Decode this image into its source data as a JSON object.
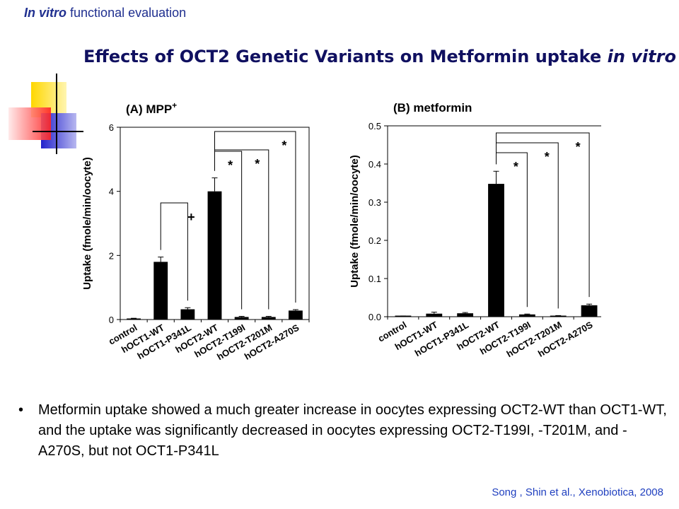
{
  "header": {
    "label_italic": "In vitro",
    "label_rest": "functional evaluation"
  },
  "title": {
    "main": "Effects of OCT2 Genetic Variants on Metformin uptake ",
    "italic": "in vitro"
  },
  "colors": {
    "decoration": [
      "#ffd700",
      "#3333cc",
      "#ff3333"
    ],
    "bar": "#000000",
    "accent": "#1f2f8f"
  },
  "chart_data": [
    {
      "type": "bar",
      "title": "(A) MPP",
      "title_superscript": "+",
      "ylabel": "Uptake (fmole/min/oocyte)",
      "xlabel": "",
      "ylim": [
        0,
        6
      ],
      "yticks": [
        "0",
        "2",
        "4",
        "6"
      ],
      "categories": [
        "control",
        "hOCT1-WT",
        "hOCT1-P341L",
        "hOCT2-WT",
        "hOCT2-T199I",
        "hOCT2-T201M",
        "hOCT2-A270S"
      ],
      "values": [
        0.03,
        1.8,
        0.32,
        4.0,
        0.08,
        0.08,
        0.28
      ],
      "errors": [
        0.01,
        0.15,
        0.05,
        0.42,
        0.02,
        0.02,
        0.03
      ],
      "annotations": [
        {
          "from": 1,
          "to": 2,
          "symbol": "+"
        },
        {
          "from": 3,
          "to": 4,
          "symbol": "*"
        },
        {
          "from": 3,
          "to": 5,
          "symbol": "*"
        },
        {
          "from": 3,
          "to": 6,
          "symbol": "*"
        }
      ]
    },
    {
      "type": "bar",
      "title": "(B) metformin",
      "title_superscript": "",
      "ylabel": "Uptake (fmole/min/oocyte)",
      "xlabel": "",
      "ylim": [
        0,
        0.5
      ],
      "yticks": [
        "0.0",
        "0.1",
        "0.2",
        "0.3",
        "0.4",
        "0.5"
      ],
      "categories": [
        "control",
        "hOCT1-WT",
        "hOCT1-P341L",
        "hOCT2-WT",
        "hOCT2-T199I",
        "hOCT2-T201M",
        "hOCT2-A270S"
      ],
      "values": [
        0.001,
        0.008,
        0.009,
        0.348,
        0.006,
        0.002,
        0.03
      ],
      "errors": [
        0.001,
        0.004,
        0.002,
        0.033,
        0.001,
        0.001,
        0.003
      ],
      "annotations": [
        {
          "from": 3,
          "to": 4,
          "symbol": "*"
        },
        {
          "from": 3,
          "to": 5,
          "symbol": "*"
        },
        {
          "from": 3,
          "to": 6,
          "symbol": "*"
        }
      ]
    }
  ],
  "bullet": {
    "marker": "•",
    "text": "Metformin uptake showed a much greater increase in oocytes expressing OCT2-WT than OCT1-WT, and the uptake was significantly decreased in oocytes expressing OCT2-T199I, -T201M, and -A270S, but not OCT1-P341L"
  },
  "citation": "Song , Shin et al., Xenobiotica, 2008"
}
